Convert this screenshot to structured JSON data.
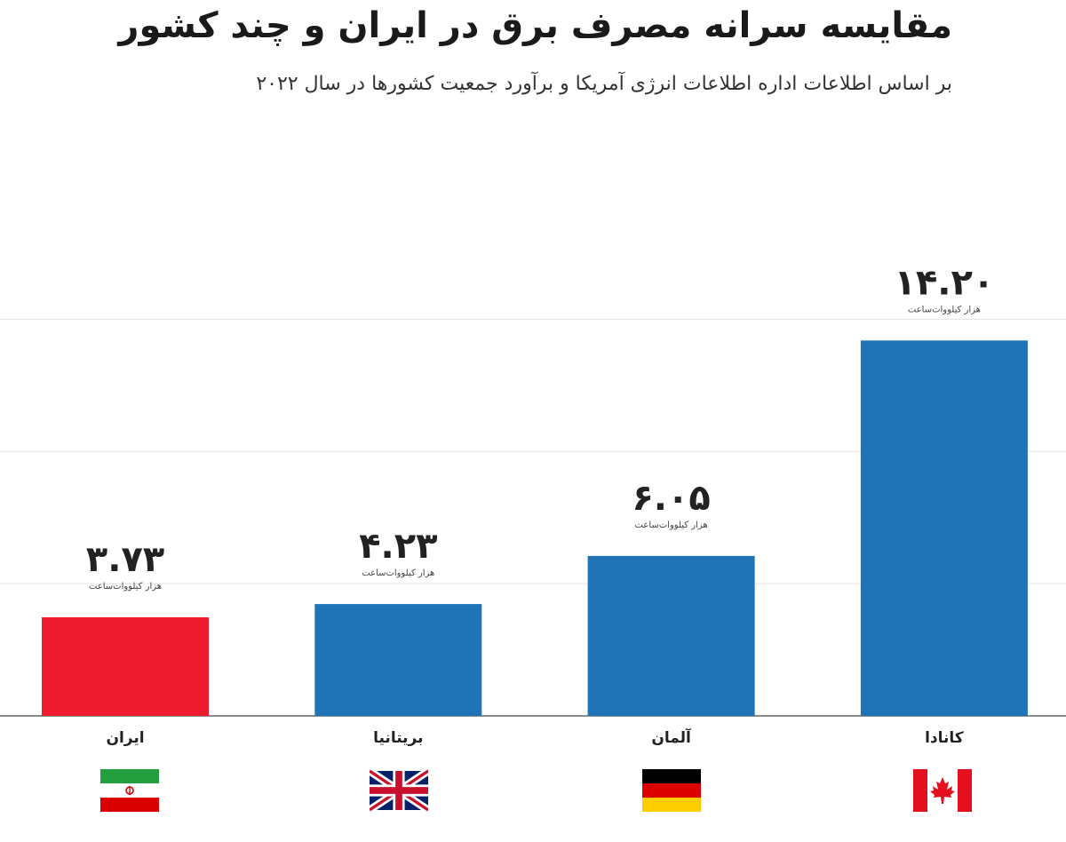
{
  "title": "مقایسه سرانه مصرف برق در ایران و چند کشور",
  "subtitle": "بر اساس اطلاعات اداره اطلاعات انرژی آمریکا و برآورد جمعیت کشورها در سال ۲۰۲۲",
  "chart_data": {
    "type": "bar",
    "title": "مقایسه سرانه مصرف برق در ایران و چند کشور",
    "subtitle": "بر اساس اطلاعات اداره اطلاعات انرژی آمریکا و برآورد جمعیت کشورها در سال ۲۰۲۲",
    "categories": [
      "ایران",
      "بریتانیا",
      "آلمان",
      "کانادا"
    ],
    "values": [
      3.73,
      4.23,
      6.05,
      14.2
    ],
    "value_labels": [
      "۳.۷۳",
      "۴.۲۳",
      "۶.۰۵",
      "۱۴.۲۰"
    ],
    "unit_label": "هزار کیلووات‌ساعت",
    "ylim": [
      0,
      17
    ],
    "gridlines": [
      5,
      10,
      15
    ],
    "grid": true,
    "xlabel": "",
    "ylabel": "",
    "bar_colors": [
      "#ee1c2e",
      "#1f73b7",
      "#1f73b7",
      "#1f73b7"
    ]
  },
  "flags": [
    {
      "country": "ایران",
      "icon": "iran-flag-icon"
    },
    {
      "country": "بریتانیا",
      "icon": "uk-flag-icon"
    },
    {
      "country": "آلمان",
      "icon": "germany-flag-icon"
    },
    {
      "country": "کانادا",
      "icon": "canada-flag-icon"
    }
  ],
  "colors": {
    "grid": "#e4e4e4",
    "axis": "#666666",
    "text": "#222222"
  }
}
